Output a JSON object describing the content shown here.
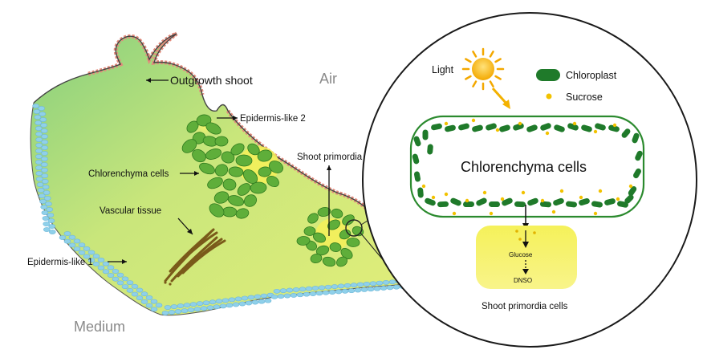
{
  "labels": {
    "outgrowth_shoot": "Outgrowth shoot",
    "air": "Air",
    "epidermis_like_2": "Epidermis-like 2",
    "chlorenchyma_cells_left": "Chlorenchyma cells",
    "shoot_primordia": "Shoot primordia",
    "vascular_tissue": "Vascular tissue",
    "epidermis_like_1": "Epidermis-like 1",
    "medium": "Medium",
    "light": "Light",
    "chloroplast": "Chloroplast",
    "sucrose": "Sucrose",
    "chlorenchyma_cells_inset": "Chlorenchyma cells",
    "glucose": "Glucose",
    "dnso": "DNSO",
    "shoot_primordia_cells": "Shoot primordia cells"
  },
  "colors": {
    "tissue_green": "#8fd17a",
    "tissue_yellow": "#eef27a",
    "epidermis_blue": "#8fd0ea",
    "epidermis_red": "#e38b7c",
    "chloroplast": "#1f7a2a",
    "sucrose": "#f2c200",
    "sun": "#f7b100",
    "vascular": "#7a5a1a",
    "primordia_cell": "#f3f04a"
  }
}
